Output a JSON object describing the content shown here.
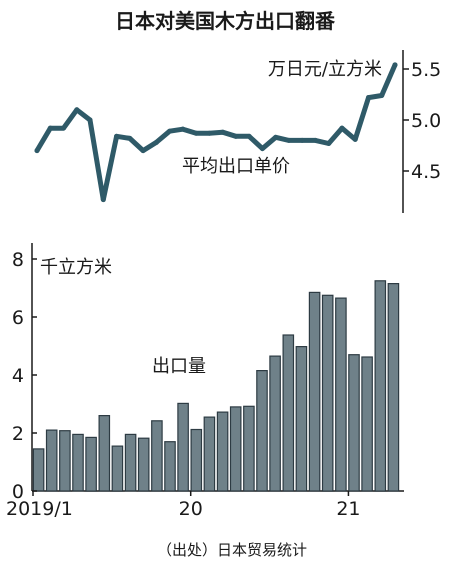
{
  "chart_data": [
    {
      "type": "line",
      "title": "日本对美国木方出口翻番",
      "unit_label": "万日元/立方米",
      "series_label": "平均出口单价",
      "ylim": [
        4.0,
        5.6
      ],
      "yticks": [
        4.5,
        5.0,
        5.5
      ],
      "grid": false,
      "x": [
        "2019/1",
        "2019/2",
        "2019/3",
        "2019/4",
        "2019/5",
        "2019/6",
        "2019/7",
        "2019/8",
        "2019/9",
        "2019/10",
        "2019/11",
        "2019/12",
        "2020/1",
        "2020/2",
        "2020/3",
        "2020/4",
        "2020/5",
        "2020/6",
        "2020/7",
        "2020/8",
        "2020/9",
        "2020/10",
        "2020/11",
        "2020/12",
        "2021/1",
        "2021/2",
        "2021/3",
        "2021/4"
      ],
      "values": [
        4.7,
        4.92,
        4.92,
        5.1,
        5.0,
        4.22,
        4.84,
        4.82,
        4.7,
        4.78,
        4.89,
        4.91,
        4.87,
        4.87,
        4.88,
        4.84,
        4.84,
        4.72,
        4.83,
        4.8,
        4.8,
        4.8,
        4.77,
        4.92,
        4.81,
        5.22,
        5.24,
        5.54
      ]
    },
    {
      "type": "bar",
      "unit_label": "千立方米",
      "series_label": "出口量",
      "ylim": [
        0,
        8.6
      ],
      "yticks": [
        0,
        2,
        4,
        6,
        8
      ],
      "xtick_labels": [
        "2019/1",
        "20",
        "21"
      ],
      "grid": false,
      "categories": [
        "2019/1",
        "2019/2",
        "2019/3",
        "2019/4",
        "2019/5",
        "2019/6",
        "2019/7",
        "2019/8",
        "2019/9",
        "2019/10",
        "2019/11",
        "2019/12",
        "2020/1",
        "2020/2",
        "2020/3",
        "2020/4",
        "2020/5",
        "2020/6",
        "2020/7",
        "2020/8",
        "2020/9",
        "2020/10",
        "2020/11",
        "2020/12",
        "2021/1",
        "2021/2",
        "2021/3",
        "2021/4"
      ],
      "values": [
        1.45,
        2.1,
        2.08,
        1.95,
        1.85,
        2.6,
        1.55,
        1.95,
        1.82,
        2.42,
        1.7,
        3.02,
        2.12,
        2.55,
        2.72,
        2.9,
        2.92,
        4.15,
        4.65,
        5.38,
        4.98,
        6.85,
        6.75,
        6.65,
        4.7,
        4.62,
        7.25,
        7.15
      ]
    }
  ],
  "source": "（出处）日本贸易统计",
  "colors": {
    "line": "#2f5a68",
    "bar": "#6f8189",
    "bar_edge": "#2d3b43",
    "axis": "#1a1a1a"
  }
}
